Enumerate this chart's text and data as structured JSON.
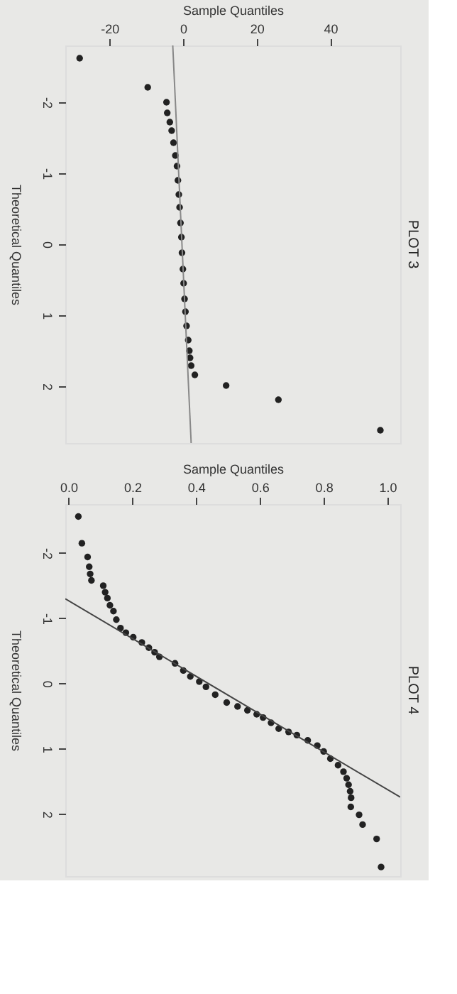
{
  "chart_data": [
    {
      "type": "scatter",
      "title": "PLOT 3",
      "xlabel": "Sample Quantiles",
      "ylabel": "Theoretical Quantiles",
      "xlim": [
        -32,
        59
      ],
      "xticks": [
        -20,
        0,
        20,
        40
      ],
      "ylim": [
        2.8,
        -2.8
      ],
      "yticks": [
        -2,
        -1,
        0,
        1,
        2
      ],
      "grid": false,
      "series": [
        {
          "type": "scatter",
          "color": "#222222",
          "marker": "circle",
          "x": [
            -28.1,
            -9.6,
            -4.5,
            -4.3,
            -3.6,
            -3.1,
            -2.6,
            -2.1,
            -1.65,
            -1.4,
            -1.15,
            -0.95,
            -0.7,
            -0.45,
            -0.3,
            -0.05,
            0.15,
            0.4,
            0.65,
            0.95,
            1.4,
            1.7,
            1.9,
            2.2,
            3.2,
            11.7,
            25.9,
            53.6
          ],
          "values": [
            -2.62,
            -2.21,
            -2.0,
            -1.85,
            -1.72,
            -1.6,
            -1.43,
            -1.25,
            -1.1,
            -0.9,
            -0.7,
            -0.52,
            -0.3,
            -0.1,
            0.12,
            0.35,
            0.55,
            0.77,
            0.95,
            1.15,
            1.35,
            1.5,
            1.6,
            1.71,
            1.84,
            1.99,
            2.19,
            2.62
          ]
        },
        {
          "type": "line",
          "color": "#888888",
          "x": [
            -2.8,
            2.2
          ],
          "values": [
            -2.8,
            2.8
          ]
        }
      ]
    },
    {
      "type": "scatter",
      "title": "PLOT 4",
      "xlabel": "Sample Quantiles",
      "ylabel": "Theoretical Quantiles",
      "xlim": [
        -0.01,
        1.04
      ],
      "xticks": [
        {
          "value": 0,
          "label": "0.0"
        },
        0.2,
        0.4,
        0.6,
        0.8,
        {
          "value": 1,
          "label": "1.0"
        }
      ],
      "ylim": [
        2.95,
        -2.75
      ],
      "yticks": [
        -2,
        -1,
        0,
        1,
        2
      ],
      "grid": false,
      "series": [
        {
          "type": "scatter",
          "color": "#222222",
          "marker": "circle",
          "x": [
            0.031,
            0.042,
            0.06,
            0.065,
            0.068,
            0.072,
            0.109,
            0.115,
            0.122,
            0.13,
            0.141,
            0.15,
            0.163,
            0.18,
            0.203,
            0.23,
            0.252,
            0.27,
            0.285,
            0.334,
            0.36,
            0.382,
            0.41,
            0.431,
            0.46,
            0.496,
            0.53,
            0.561,
            0.59,
            0.61,
            0.635,
            0.659,
            0.69,
            0.716,
            0.75,
            0.78,
            0.8,
            0.821,
            0.845,
            0.862,
            0.872,
            0.878,
            0.883,
            0.886,
            0.885,
            0.911,
            0.922,
            0.966,
            0.98
          ],
          "values": [
            -2.56,
            -2.15,
            -1.94,
            -1.79,
            -1.68,
            -1.58,
            -1.5,
            -1.4,
            -1.31,
            -1.2,
            -1.11,
            -0.98,
            -0.85,
            -0.78,
            -0.71,
            -0.63,
            -0.55,
            -0.48,
            -0.41,
            -0.31,
            -0.2,
            -0.11,
            -0.03,
            0.05,
            0.17,
            0.29,
            0.35,
            0.41,
            0.47,
            0.52,
            0.6,
            0.69,
            0.74,
            0.79,
            0.87,
            0.95,
            1.04,
            1.15,
            1.25,
            1.35,
            1.45,
            1.55,
            1.65,
            1.75,
            1.89,
            2.01,
            2.16,
            2.38,
            2.81
          ]
        },
        {
          "type": "line",
          "color": "#444444",
          "x": [
            -0.01,
            1.04
          ],
          "values": [
            -1.3,
            1.74
          ]
        }
      ]
    }
  ]
}
